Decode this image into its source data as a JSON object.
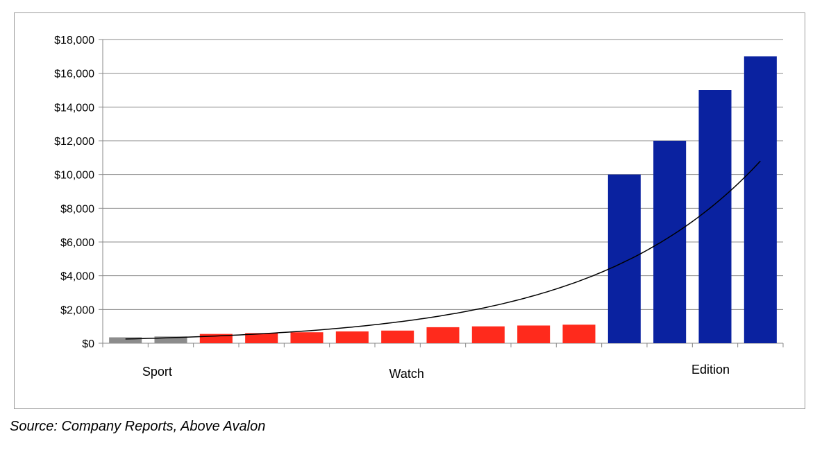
{
  "chart_data": {
    "type": "bar",
    "title": "",
    "xlabel": "",
    "ylabel": "",
    "ylim": [
      0,
      18000
    ],
    "yticks": [
      0,
      2000,
      4000,
      6000,
      8000,
      10000,
      12000,
      14000,
      16000,
      18000
    ],
    "ytick_labels": [
      "$0",
      "$2,000",
      "$4,000",
      "$6,000",
      "$8,000",
      "$10,000",
      "$12,000",
      "$14,000",
      "$16,000",
      "$18,000"
    ],
    "grid": true,
    "legend": "none",
    "values": [
      349,
      399,
      549,
      599,
      649,
      699,
      749,
      949,
      999,
      1049,
      1099,
      10000,
      12000,
      15000,
      17000
    ],
    "bar_groups": [
      "Sport",
      "Sport",
      "Watch",
      "Watch",
      "Watch",
      "Watch",
      "Watch",
      "Watch",
      "Watch",
      "Watch",
      "Watch",
      "Edition",
      "Edition",
      "Edition",
      "Edition"
    ],
    "group_labels": [
      {
        "text": "Sport",
        "bar": 0.7
      },
      {
        "text": "Watch",
        "bar": 6.2
      },
      {
        "text": "Edition",
        "bar": 12.9
      }
    ],
    "colors": {
      "Sport": "#8c8c8c",
      "Watch": "#ff2a1c",
      "Edition": "#0a22a0",
      "trendline": "#000000",
      "grid": "#888888"
    },
    "trendline": {
      "type": "exponential",
      "start_value": 250,
      "end_value": 10800
    }
  },
  "source": "Source: Company Reports, Above Avalon"
}
